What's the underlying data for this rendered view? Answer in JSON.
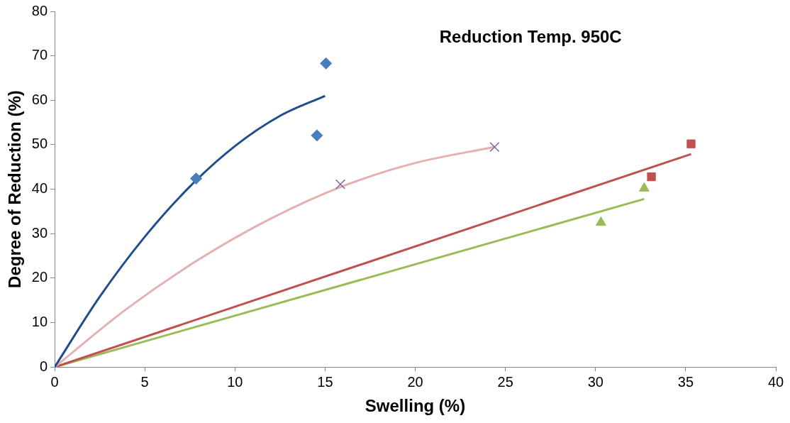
{
  "chart_data": {
    "type": "scatter",
    "annotations": [
      "Reduction Temp. 950C"
    ],
    "xlabel": "Swelling (%)",
    "ylabel": "Degree of Reduction (%)",
    "xlim": [
      0,
      40
    ],
    "xticks": [
      0,
      5,
      10,
      15,
      20,
      25,
      30,
      35,
      40
    ],
    "ylim": [
      0,
      80
    ],
    "yticks": [
      0,
      10,
      20,
      30,
      40,
      50,
      60,
      70,
      80
    ],
    "grid": false,
    "legend": false,
    "series": [
      {
        "type": "line",
        "color": "#1f4e8c",
        "marker": "none",
        "x": [
          0,
          2.5,
          5,
          7.5,
          10,
          12.5,
          15
        ],
        "values": [
          0,
          15.8,
          29.3,
          40.6,
          49.7,
          56.5,
          61.0
        ]
      },
      {
        "type": "line",
        "color": "#e6b0b0",
        "marker": "none",
        "x": [
          0,
          4,
          8,
          12,
          16,
          20,
          24.4
        ],
        "values": [
          0,
          13.1,
          24.2,
          33.4,
          40.7,
          45.9,
          49.5
        ]
      },
      {
        "type": "line",
        "color": "#c0504d",
        "marker": "none",
        "x": [
          0,
          35.3
        ],
        "values": [
          0,
          47.9
        ]
      },
      {
        "type": "line",
        "color": "#9bbb59",
        "marker": "none",
        "x": [
          0,
          32.7
        ],
        "values": [
          0,
          37.8
        ]
      },
      {
        "type": "scatter",
        "color": "#4a7dbf",
        "marker": "diamond",
        "x": [
          7.85,
          14.55,
          15.05
        ],
        "values": [
          42.4,
          52.1,
          68.3
        ]
      },
      {
        "type": "scatter",
        "color": "#8064a2",
        "marker": "cross",
        "x": [
          15.85,
          24.4
        ],
        "values": [
          41.1,
          49.5
        ]
      },
      {
        "type": "scatter",
        "color": "#c0504d",
        "marker": "square",
        "x": [
          33.1,
          35.3
        ],
        "values": [
          42.8,
          50.2
        ]
      },
      {
        "type": "scatter",
        "color": "#9bbb59",
        "marker": "triangle",
        "x": [
          30.3,
          32.7
        ],
        "values": [
          32.5,
          40.2
        ]
      }
    ]
  }
}
